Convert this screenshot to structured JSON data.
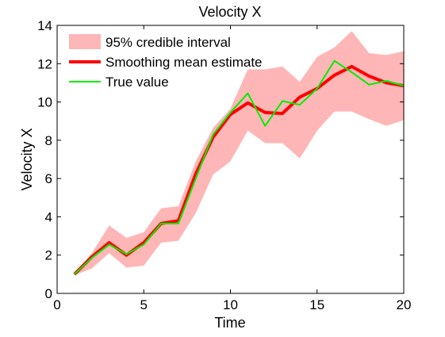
{
  "chart_data": {
    "type": "line",
    "title": "Velocity X",
    "xlabel": "Time",
    "ylabel": "Velocity X",
    "xlim": [
      0,
      20
    ],
    "ylim": [
      0,
      14
    ],
    "xticks": [
      0,
      5,
      10,
      15,
      20
    ],
    "yticks": [
      0,
      2,
      4,
      6,
      8,
      10,
      12,
      14
    ],
    "grid": false,
    "legend_position": "top-left",
    "x": [
      1,
      2,
      3,
      4,
      5,
      6,
      7,
      8,
      9,
      10,
      11,
      12,
      13,
      14,
      15,
      16,
      17,
      18,
      19,
      20
    ],
    "band": {
      "name": "95% credible interval",
      "color": "#ffb6b6",
      "lower": [
        0.95,
        1.3,
        2.1,
        1.35,
        1.45,
        2.65,
        2.75,
        4.2,
        6.2,
        6.9,
        8.5,
        7.85,
        7.85,
        7.05,
        8.5,
        9.5,
        9.5,
        9.1,
        8.75,
        9.05
      ],
      "upper": [
        1.05,
        2.1,
        3.55,
        2.9,
        3.2,
        4.45,
        4.55,
        6.9,
        8.65,
        9.65,
        11.7,
        11.7,
        11.85,
        11.05,
        12.35,
        12.85,
        13.7,
        12.55,
        12.45,
        12.65
      ]
    },
    "series": [
      {
        "name": "Smoothing mean estimate",
        "color": "#ff0000",
        "values": [
          1.0,
          1.9,
          2.65,
          2.0,
          2.65,
          3.65,
          3.8,
          6.25,
          8.15,
          9.35,
          9.95,
          9.45,
          9.4,
          10.25,
          10.7,
          11.4,
          11.85,
          11.35,
          11.0,
          10.85
        ]
      },
      {
        "name": "True value",
        "color": "#00ee00",
        "values": [
          1.0,
          1.85,
          2.55,
          2.05,
          2.55,
          3.65,
          3.65,
          6.0,
          8.3,
          9.45,
          10.45,
          8.75,
          10.05,
          9.85,
          10.7,
          12.15,
          11.55,
          10.9,
          11.1,
          10.85
        ]
      }
    ]
  }
}
